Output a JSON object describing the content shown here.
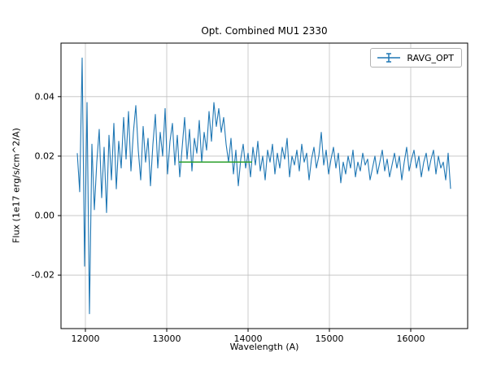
{
  "figure": {
    "title": "Opt. Combined MU1 2330",
    "xlabel": "Wavelength (A)",
    "ylabel": "Flux (1e17 erg/s/cm^2/A)"
  },
  "legend": {
    "label": "RAVG_OPT"
  },
  "colors": {
    "series": "#1f77b4",
    "annotation": "#2ca02c",
    "grid": "#c0c0c0",
    "spine": "#000000",
    "background": "#ffffff"
  },
  "chart_data": {
    "type": "line",
    "title": "Opt. Combined MU1 2330",
    "xlabel": "Wavelength (A)",
    "ylabel": "Flux (1e17 erg/s/cm^2/A)",
    "xlim": [
      11700,
      16700
    ],
    "ylim": [
      -0.038,
      0.058
    ],
    "xticks": [
      12000,
      13000,
      14000,
      15000,
      16000
    ],
    "yticks": [
      -0.02,
      0.0,
      0.02,
      0.04
    ],
    "grid": true,
    "legend_position": "upper right",
    "series": [
      {
        "name": "RAVG_OPT",
        "color": "#1f77b4",
        "x": [
          11900,
          11930,
          11960,
          11990,
          12020,
          12050,
          12080,
          12110,
          12140,
          12170,
          12200,
          12230,
          12260,
          12290,
          12320,
          12350,
          12380,
          12410,
          12440,
          12470,
          12500,
          12530,
          12560,
          12590,
          12620,
          12650,
          12680,
          12710,
          12740,
          12770,
          12800,
          12830,
          12860,
          12890,
          12920,
          12950,
          12980,
          13010,
          13040,
          13070,
          13100,
          13130,
          13160,
          13190,
          13220,
          13250,
          13280,
          13310,
          13340,
          13370,
          13400,
          13430,
          13460,
          13490,
          13520,
          13550,
          13580,
          13610,
          13640,
          13670,
          13700,
          13730,
          13760,
          13790,
          13820,
          13850,
          13880,
          13910,
          13940,
          13970,
          14000,
          14030,
          14060,
          14090,
          14120,
          14150,
          14180,
          14210,
          14240,
          14270,
          14300,
          14330,
          14360,
          14390,
          14420,
          14450,
          14480,
          14510,
          14540,
          14570,
          14600,
          14630,
          14660,
          14690,
          14720,
          14750,
          14780,
          14810,
          14840,
          14870,
          14900,
          14930,
          14960,
          14990,
          15020,
          15050,
          15080,
          15110,
          15140,
          15170,
          15200,
          15230,
          15260,
          15290,
          15320,
          15350,
          15380,
          15410,
          15440,
          15470,
          15500,
          15530,
          15560,
          15590,
          15620,
          15650,
          15680,
          15710,
          15740,
          15770,
          15800,
          15830,
          15860,
          15890,
          15920,
          15950,
          15980,
          16010,
          16040,
          16070,
          16100,
          16130,
          16160,
          16190,
          16220,
          16250,
          16280,
          16310,
          16340,
          16370,
          16400,
          16430,
          16460,
          16490
        ],
        "y": [
          0.021,
          0.008,
          0.053,
          -0.017,
          0.038,
          -0.033,
          0.024,
          0.002,
          0.018,
          0.029,
          0.006,
          0.023,
          0.001,
          0.027,
          0.012,
          0.031,
          0.009,
          0.025,
          0.016,
          0.033,
          0.019,
          0.035,
          0.015,
          0.028,
          0.037,
          0.022,
          0.012,
          0.03,
          0.018,
          0.026,
          0.01,
          0.024,
          0.034,
          0.016,
          0.028,
          0.02,
          0.036,
          0.014,
          0.025,
          0.031,
          0.017,
          0.027,
          0.013,
          0.023,
          0.033,
          0.019,
          0.029,
          0.015,
          0.026,
          0.021,
          0.032,
          0.018,
          0.028,
          0.022,
          0.035,
          0.025,
          0.038,
          0.03,
          0.036,
          0.028,
          0.033,
          0.024,
          0.018,
          0.026,
          0.014,
          0.022,
          0.01,
          0.019,
          0.024,
          0.016,
          0.021,
          0.013,
          0.023,
          0.017,
          0.025,
          0.015,
          0.02,
          0.012,
          0.022,
          0.018,
          0.024,
          0.014,
          0.021,
          0.016,
          0.023,
          0.019,
          0.026,
          0.013,
          0.02,
          0.017,
          0.022,
          0.015,
          0.024,
          0.018,
          0.021,
          0.012,
          0.019,
          0.023,
          0.016,
          0.02,
          0.028,
          0.017,
          0.022,
          0.014,
          0.019,
          0.023,
          0.016,
          0.021,
          0.011,
          0.018,
          0.014,
          0.02,
          0.016,
          0.022,
          0.013,
          0.018,
          0.015,
          0.021,
          0.017,
          0.019,
          0.012,
          0.016,
          0.02,
          0.014,
          0.018,
          0.022,
          0.015,
          0.019,
          0.013,
          0.017,
          0.021,
          0.016,
          0.02,
          0.012,
          0.018,
          0.023,
          0.015,
          0.019,
          0.022,
          0.016,
          0.02,
          0.013,
          0.018,
          0.021,
          0.015,
          0.019,
          0.022,
          0.014,
          0.02,
          0.016,
          0.018,
          0.012,
          0.021,
          0.009
        ]
      }
    ],
    "annotations": [
      {
        "type": "hline_segment",
        "x1": 13150,
        "x2": 14050,
        "y": 0.018,
        "color": "#2ca02c"
      }
    ]
  }
}
